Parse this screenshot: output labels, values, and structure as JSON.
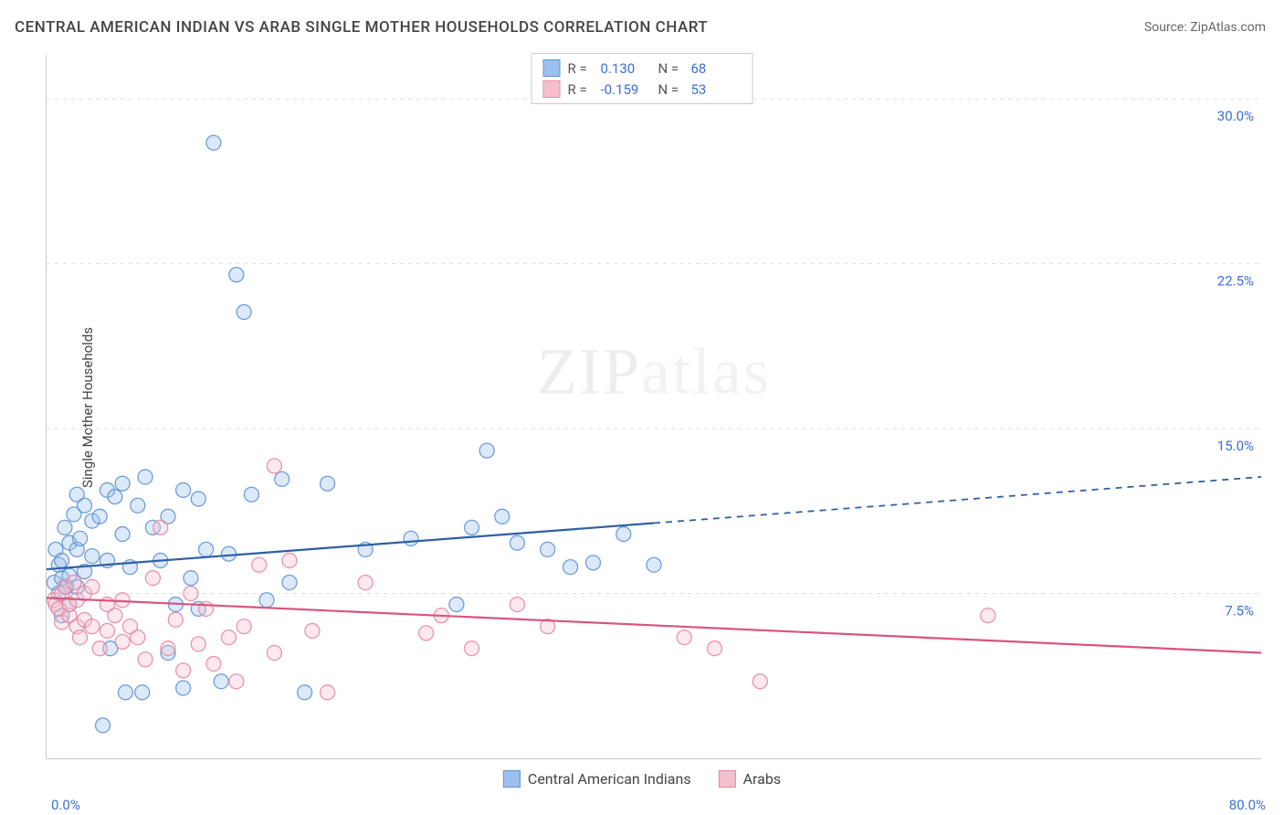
{
  "title": "CENTRAL AMERICAN INDIAN VS ARAB SINGLE MOTHER HOUSEHOLDS CORRELATION CHART",
  "source_label": "Source:",
  "source_name": "ZipAtlas.com",
  "y_axis_label": "Single Mother Households",
  "watermark_bold": "ZIP",
  "watermark_light": "atlas",
  "chart": {
    "type": "scatter-with-regression",
    "background_color": "#ffffff",
    "grid_color": "#dddddd",
    "axis_color": "#cccccc",
    "tick_color": "#3b6fd6",
    "xlim": [
      0,
      80
    ],
    "ylim": [
      0,
      32
    ],
    "x_ticks": [
      {
        "pos": 0,
        "label": "0.0%"
      },
      {
        "pos": 80,
        "label": "80.0%"
      }
    ],
    "y_gridlines": [
      7.5,
      15.0,
      22.5,
      30.0
    ],
    "y_tick_labels": [
      "7.5%",
      "15.0%",
      "22.5%",
      "30.0%"
    ],
    "marker_radius": 8,
    "marker_fill_opacity": 0.35,
    "marker_stroke_opacity": 0.9,
    "line_width": 2.2,
    "series": [
      {
        "name": "Central American Indians",
        "color_fill": "#9cc0ef",
        "color_stroke": "#5f94d6",
        "line_color": "#2e5fa3",
        "regression": {
          "x1": 0,
          "y1": 8.6,
          "x2": 80,
          "y2": 12.8,
          "solid_until_x": 40
        },
        "R_value": "0.130",
        "N_value": "68",
        "points": [
          [
            0.5,
            8.0
          ],
          [
            0.6,
            9.5
          ],
          [
            0.8,
            7.5
          ],
          [
            0.8,
            8.8
          ],
          [
            1.0,
            8.2
          ],
          [
            1.0,
            9.0
          ],
          [
            1.0,
            6.5
          ],
          [
            1.2,
            10.5
          ],
          [
            1.3,
            7.8
          ],
          [
            1.5,
            9.8
          ],
          [
            1.5,
            8.3
          ],
          [
            1.5,
            7.0
          ],
          [
            1.8,
            11.1
          ],
          [
            2.0,
            9.5
          ],
          [
            2.0,
            12.0
          ],
          [
            2.0,
            7.8
          ],
          [
            2.2,
            10.0
          ],
          [
            2.5,
            11.5
          ],
          [
            2.5,
            8.5
          ],
          [
            3.0,
            10.8
          ],
          [
            3.0,
            9.2
          ],
          [
            3.5,
            11.0
          ],
          [
            3.7,
            1.5
          ],
          [
            4.0,
            12.2
          ],
          [
            4.0,
            9.0
          ],
          [
            4.2,
            5.0
          ],
          [
            4.5,
            11.9
          ],
          [
            5.0,
            10.2
          ],
          [
            5.0,
            12.5
          ],
          [
            5.2,
            3.0
          ],
          [
            5.5,
            8.7
          ],
          [
            6.0,
            11.5
          ],
          [
            6.3,
            3.0
          ],
          [
            6.5,
            12.8
          ],
          [
            7.0,
            10.5
          ],
          [
            7.5,
            9.0
          ],
          [
            8.0,
            11.0
          ],
          [
            8.0,
            4.8
          ],
          [
            8.5,
            7.0
          ],
          [
            9.0,
            12.2
          ],
          [
            9.0,
            3.2
          ],
          [
            9.5,
            8.2
          ],
          [
            10.0,
            11.8
          ],
          [
            10.0,
            6.8
          ],
          [
            10.5,
            9.5
          ],
          [
            11.0,
            28.0
          ],
          [
            11.5,
            3.5
          ],
          [
            12.0,
            9.3
          ],
          [
            12.5,
            22.0
          ],
          [
            13.0,
            20.3
          ],
          [
            13.5,
            12.0
          ],
          [
            14.5,
            7.2
          ],
          [
            15.5,
            12.7
          ],
          [
            16.0,
            8.0
          ],
          [
            17.0,
            3.0
          ],
          [
            18.5,
            12.5
          ],
          [
            21.0,
            9.5
          ],
          [
            24.0,
            10.0
          ],
          [
            27.0,
            7.0
          ],
          [
            28.0,
            10.5
          ],
          [
            29.0,
            14.0
          ],
          [
            30.0,
            11.0
          ],
          [
            31.0,
            9.8
          ],
          [
            33.0,
            9.5
          ],
          [
            34.5,
            8.7
          ],
          [
            36.0,
            8.9
          ],
          [
            38.0,
            10.2
          ],
          [
            40.0,
            8.8
          ]
        ]
      },
      {
        "name": "Arabs",
        "color_fill": "#f4c0cd",
        "color_stroke": "#e788a3",
        "line_color": "#d7557e",
        "regression": {
          "x1": 0,
          "y1": 7.3,
          "x2": 80,
          "y2": 4.8,
          "solid_until_x": 80
        },
        "R_value": "-0.159",
        "N_value": "53",
        "points": [
          [
            0.5,
            7.2
          ],
          [
            0.6,
            7.0
          ],
          [
            0.8,
            6.8
          ],
          [
            1.0,
            7.5
          ],
          [
            1.0,
            6.2
          ],
          [
            1.2,
            7.8
          ],
          [
            1.5,
            6.5
          ],
          [
            1.5,
            7.0
          ],
          [
            1.8,
            8.0
          ],
          [
            2.0,
            6.0
          ],
          [
            2.0,
            7.2
          ],
          [
            2.2,
            5.5
          ],
          [
            2.5,
            7.5
          ],
          [
            2.5,
            6.3
          ],
          [
            3.0,
            6.0
          ],
          [
            3.0,
            7.8
          ],
          [
            3.5,
            5.0
          ],
          [
            4.0,
            7.0
          ],
          [
            4.0,
            5.8
          ],
          [
            4.5,
            6.5
          ],
          [
            5.0,
            5.3
          ],
          [
            5.0,
            7.2
          ],
          [
            5.5,
            6.0
          ],
          [
            6.0,
            5.5
          ],
          [
            6.5,
            4.5
          ],
          [
            7.0,
            8.2
          ],
          [
            7.5,
            10.5
          ],
          [
            8.0,
            5.0
          ],
          [
            8.5,
            6.3
          ],
          [
            9.0,
            4.0
          ],
          [
            9.5,
            7.5
          ],
          [
            10.0,
            5.2
          ],
          [
            10.5,
            6.8
          ],
          [
            11.0,
            4.3
          ],
          [
            12.0,
            5.5
          ],
          [
            12.5,
            3.5
          ],
          [
            13.0,
            6.0
          ],
          [
            14.0,
            8.8
          ],
          [
            15.0,
            4.8
          ],
          [
            15.0,
            13.3
          ],
          [
            16.0,
            9.0
          ],
          [
            17.5,
            5.8
          ],
          [
            18.5,
            3.0
          ],
          [
            21.0,
            8.0
          ],
          [
            25.0,
            5.7
          ],
          [
            26.0,
            6.5
          ],
          [
            28.0,
            5.0
          ],
          [
            31.0,
            7.0
          ],
          [
            33.0,
            6.0
          ],
          [
            42.0,
            5.5
          ],
          [
            44.0,
            5.0
          ],
          [
            47.0,
            3.5
          ],
          [
            62.0,
            6.5
          ]
        ]
      }
    ]
  },
  "legend_top_labels": {
    "R": "R =",
    "N": "N ="
  },
  "legend_bottom": [
    {
      "label": "Central American Indians",
      "fill": "#9cc0ef",
      "stroke": "#5f94d6"
    },
    {
      "label": "Arabs",
      "fill": "#f4c0cd",
      "stroke": "#e788a3"
    }
  ]
}
